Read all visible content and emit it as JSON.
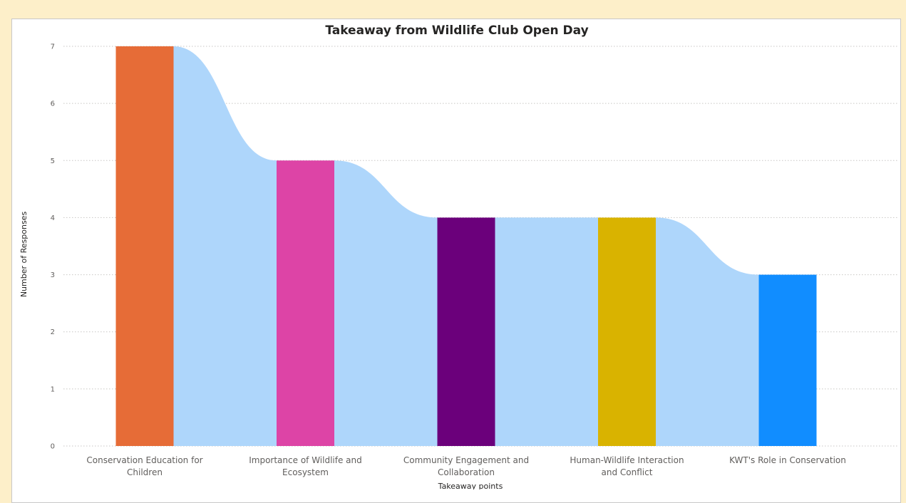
{
  "chart_data": {
    "type": "bar",
    "title": "Takeaway from Wildlife Club Open Day",
    "xlabel": "Takeaway points",
    "ylabel": "Number of Responses",
    "ylim": [
      0,
      7
    ],
    "yticks": [
      0,
      1,
      2,
      3,
      4,
      5,
      6,
      7
    ],
    "grid": true,
    "categories": [
      [
        "Conservation Education for",
        "Children"
      ],
      [
        "Importance of Wildlife and",
        "Ecosystem"
      ],
      [
        "Community Engagement and",
        "Collaboration"
      ],
      [
        "Human-Wildlife Interaction",
        "and Conflict"
      ],
      [
        "KWT's Role in Conservation"
      ]
    ],
    "values": [
      7,
      5,
      4,
      4,
      3
    ],
    "colors": [
      "#e66c37",
      "#dd44a6",
      "#6b007b",
      "#d9b300",
      "#118dff"
    ],
    "ribbon_color": "#aed6fb",
    "background_color": "#fdefc9"
  }
}
